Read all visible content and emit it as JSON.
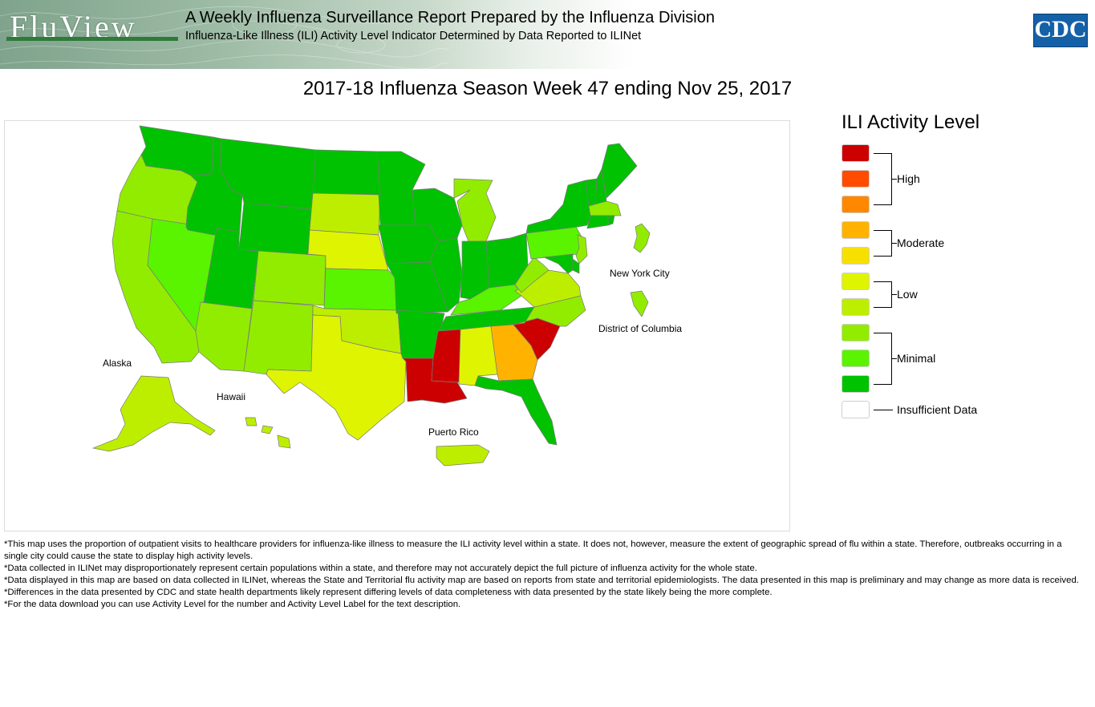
{
  "header": {
    "logo_text": "FluView",
    "title": "A Weekly Influenza Surveillance Report Prepared by the Influenza Division",
    "subtitle": "Influenza-Like Illness (ILI) Activity Level Indicator Determined by Data Reported to ILINet",
    "agency_logo": "CDC"
  },
  "map": {
    "title": "2017-18 Influenza Season Week 47 ending Nov 25, 2017",
    "region_labels": {
      "alaska": "Alaska",
      "hawaii": "Hawaii",
      "puerto_rico": "Puerto Rico",
      "nyc": "New York City",
      "dc": "District of Columbia"
    },
    "level_colors": {
      "10": "#cc0000",
      "9": "#ff4c00",
      "8": "#ff8800",
      "7": "#ffb300",
      "6": "#f7e000",
      "5": "#dff400",
      "4": "#bdee00",
      "3": "#92ec00",
      "2": "#5af300",
      "1": "#00c200",
      "0": "#ffffff"
    },
    "state_levels": {
      "WA": 1,
      "OR": 3,
      "CA": 3,
      "NV": 2,
      "ID": 1,
      "MT": 1,
      "WY": 1,
      "UT": 1,
      "AZ": 3,
      "CO": 3,
      "NM": 3,
      "ND": 1,
      "SD": 4,
      "NE": 5,
      "KS": 2,
      "OK": 4,
      "TX": 5,
      "MN": 1,
      "IA": 1,
      "MO": 1,
      "AR": 1,
      "LA": 10,
      "WI": 1,
      "IL": 1,
      "MI": 3,
      "IN": 1,
      "OH": 1,
      "KY": 2,
      "TN": 1,
      "MS": 10,
      "AL": 5,
      "GA": 7,
      "FL": 1,
      "SC": 10,
      "NC": 3,
      "VA": 4,
      "WV": 3,
      "PA": 2,
      "NY": 1,
      "VT": 1,
      "NH": 1,
      "ME": 1,
      "MA": 3,
      "CT": 1,
      "RI": 1,
      "NJ": 3,
      "DE": 1,
      "MD": 1,
      "AK": 4,
      "HI": 4,
      "PR": 4,
      "NYC": 3,
      "DC": 3
    }
  },
  "legend": {
    "title": "ILI Activity Level",
    "levels": [
      {
        "level": 10,
        "color": "#cc0000"
      },
      {
        "level": 9,
        "color": "#ff4c00"
      },
      {
        "level": 8,
        "color": "#ff8800"
      },
      {
        "level": 7,
        "color": "#ffb300"
      },
      {
        "level": 6,
        "color": "#f7e000"
      },
      {
        "level": 5,
        "color": "#dff400"
      },
      {
        "level": 4,
        "color": "#bdee00"
      },
      {
        "level": 3,
        "color": "#92ec00"
      },
      {
        "level": 2,
        "color": "#5af300"
      },
      {
        "level": 1,
        "color": "#00c200"
      },
      {
        "level": 0,
        "color": "#ffffff"
      }
    ],
    "groups": {
      "high": "High",
      "moderate": "Moderate",
      "low": "Low",
      "minimal": "Minimal",
      "insufficient": "Insufficient Data"
    }
  },
  "footnotes": [
    "*This map uses the proportion of outpatient visits to healthcare providers for influenza-like illness to measure the ILI activity level within a state. It does not, however, measure the extent of geographic spread of flu within a state. Therefore, outbreaks occurring in a single city could cause the state to display high activity levels.",
    "*Data collected in ILINet may disproportionately represent certain populations within a state, and therefore may not accurately depict the full picture of influenza activity for the whole state.",
    "*Data displayed in this map are based on data collected in ILINet, whereas the State and Territorial flu activity map are based on reports from state and territorial epidemiologists. The data presented in this map is preliminary and may change as more data is received.",
    "*Differences in the data presented by CDC and state health departments likely represent differing levels of data completeness with data presented by the state likely being the more complete.",
    "*For the data download you can use Activity Level for the number and Activity Level Label for the text description."
  ]
}
